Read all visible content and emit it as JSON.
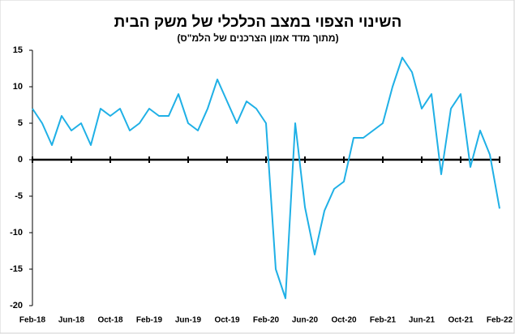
{
  "chart_data": {
    "type": "line",
    "title": "השינוי הצפוי במצב הכלכלי של משק הבית",
    "subtitle": "(מתוך מדד אמון הצרכנים של הלמ\"ס)",
    "categories": [
      "Feb-18",
      null,
      null,
      null,
      "Jun-18",
      null,
      null,
      null,
      "Oct-18",
      null,
      null,
      null,
      "Feb-19",
      null,
      null,
      null,
      "Jun-19",
      null,
      null,
      null,
      "Oct-19",
      null,
      null,
      null,
      "Feb-20",
      null,
      null,
      null,
      "Jun-20",
      null,
      null,
      null,
      "Oct-20",
      null,
      null,
      null,
      "Feb-21",
      null,
      null,
      null,
      "Jun-21",
      null,
      null,
      null,
      "Oct-21",
      null,
      null,
      null,
      "Feb-22"
    ],
    "series": [
      {
        "name": "השינוי הצפוי",
        "color": "#1fb0e6",
        "values": [
          7,
          5,
          2,
          6,
          4,
          5,
          2,
          7,
          6,
          7,
          4,
          5,
          7,
          6,
          6,
          9,
          5,
          4,
          7,
          11,
          8,
          5,
          8,
          7,
          5,
          -15,
          -19,
          5,
          -6.5,
          -13,
          -7,
          -4,
          -3,
          3,
          3,
          4,
          5,
          10,
          14,
          12,
          7,
          9,
          -2,
          7,
          9,
          -1,
          4,
          0.7,
          -6.7
        ]
      }
    ],
    "ylim": [
      -20,
      15
    ],
    "yticks": [
      15,
      10,
      5,
      0,
      -5,
      -10,
      -15,
      -20
    ],
    "grid": false
  }
}
